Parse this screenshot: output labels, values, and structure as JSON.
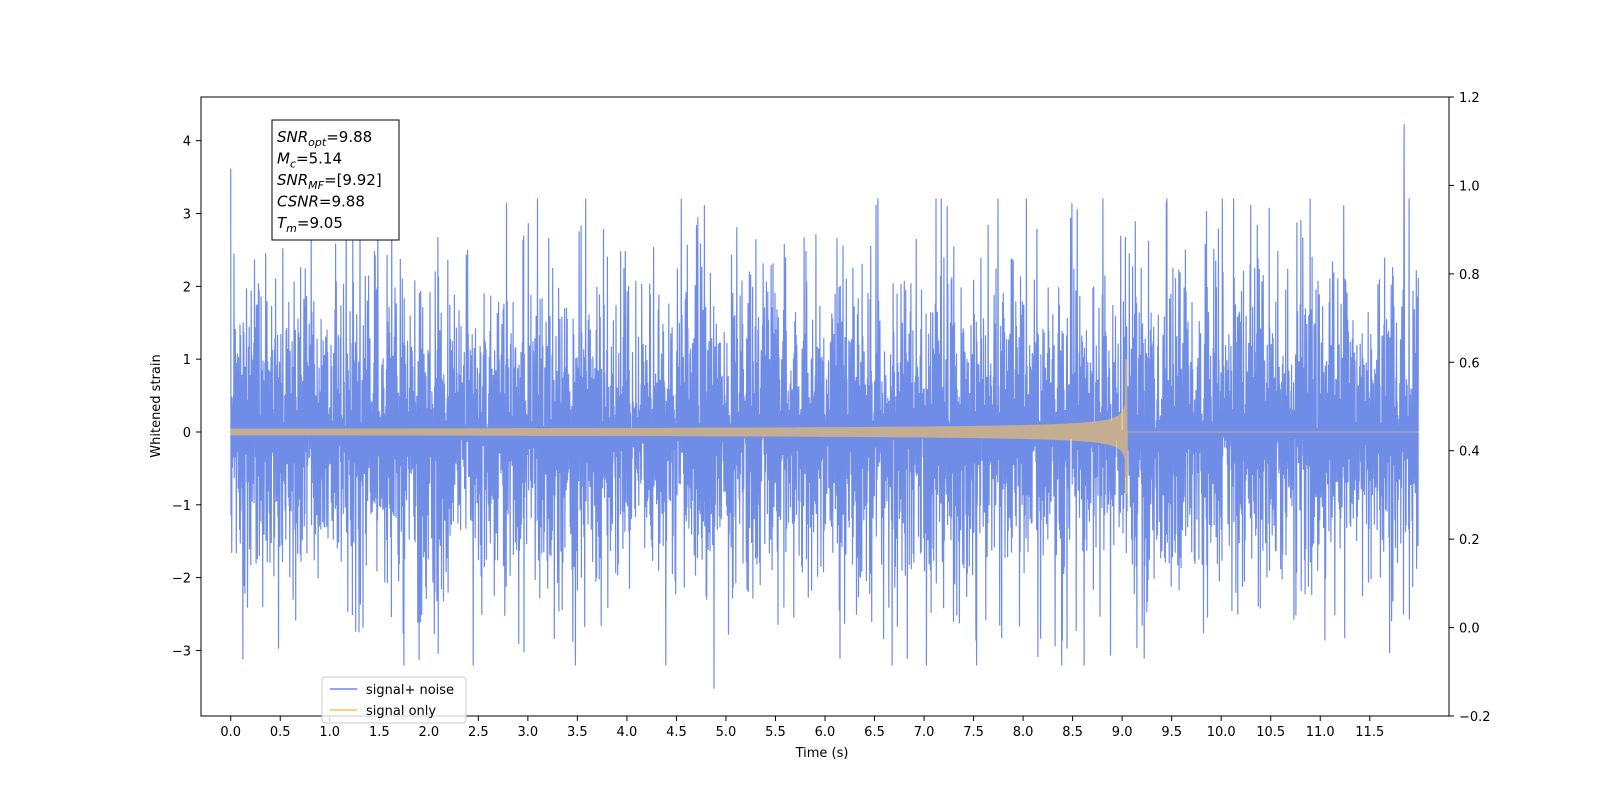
{
  "chart_data": {
    "type": "line",
    "xlabel": "Time (s)",
    "ylabel": "Whitened strain",
    "x_ticks": [
      "0.0",
      "0.5",
      "1.0",
      "1.5",
      "2.0",
      "2.5",
      "3.0",
      "3.5",
      "4.0",
      "4.5",
      "5.0",
      "5.5",
      "6.0",
      "6.5",
      "7.0",
      "7.5",
      "8.0",
      "8.5",
      "9.0",
      "9.5",
      "10.0",
      "10.5",
      "11.0",
      "11.5"
    ],
    "y_left_ticks": [
      "−3",
      "−2",
      "−1",
      "0",
      "1",
      "2",
      "3",
      "4"
    ],
    "y_right_ticks": [
      "−0.2",
      "0.0",
      "0.2",
      "0.4",
      "0.6",
      "0.8",
      "1.0",
      "1.2"
    ],
    "xlim": [
      -0.3,
      12.3
    ],
    "ylim_left": [
      -3.9,
      4.6
    ],
    "ylim_right": [
      -0.2,
      1.2
    ],
    "legend_location": "lower-left",
    "series": [
      {
        "name": "signal+ noise",
        "color": "#6f8ce6",
        "axis": "left",
        "description": "whitened noise plus signal, amplitude roughly ±3, peaks up to 4.2 and down to −3.5",
        "t_start": 0.0,
        "t_end": 11.99,
        "max": 4.22,
        "min": -3.52
      },
      {
        "name": "signal only",
        "color": "#ffc35a",
        "axis": "left",
        "description": "chirp signal growing in amplitude until merger, then ~0",
        "t_start": 0.0,
        "t_merger": 9.05,
        "t_end": 11.99,
        "peak_max": 1.0,
        "peak_min": -0.85
      }
    ],
    "annotation": {
      "lines": [
        {
          "main": "SNR",
          "sub": "opt",
          "rest": "=9.88"
        },
        {
          "main": "M",
          "sub": "c",
          "rest": "=5.14"
        },
        {
          "main": "SNR",
          "sub": "MF",
          "rest": "=[9.92]"
        },
        {
          "main": "CSNR",
          "sub": "",
          "rest": "=9.88"
        },
        {
          "main": "T",
          "sub": "m",
          "rest": "=9.05"
        }
      ]
    }
  }
}
